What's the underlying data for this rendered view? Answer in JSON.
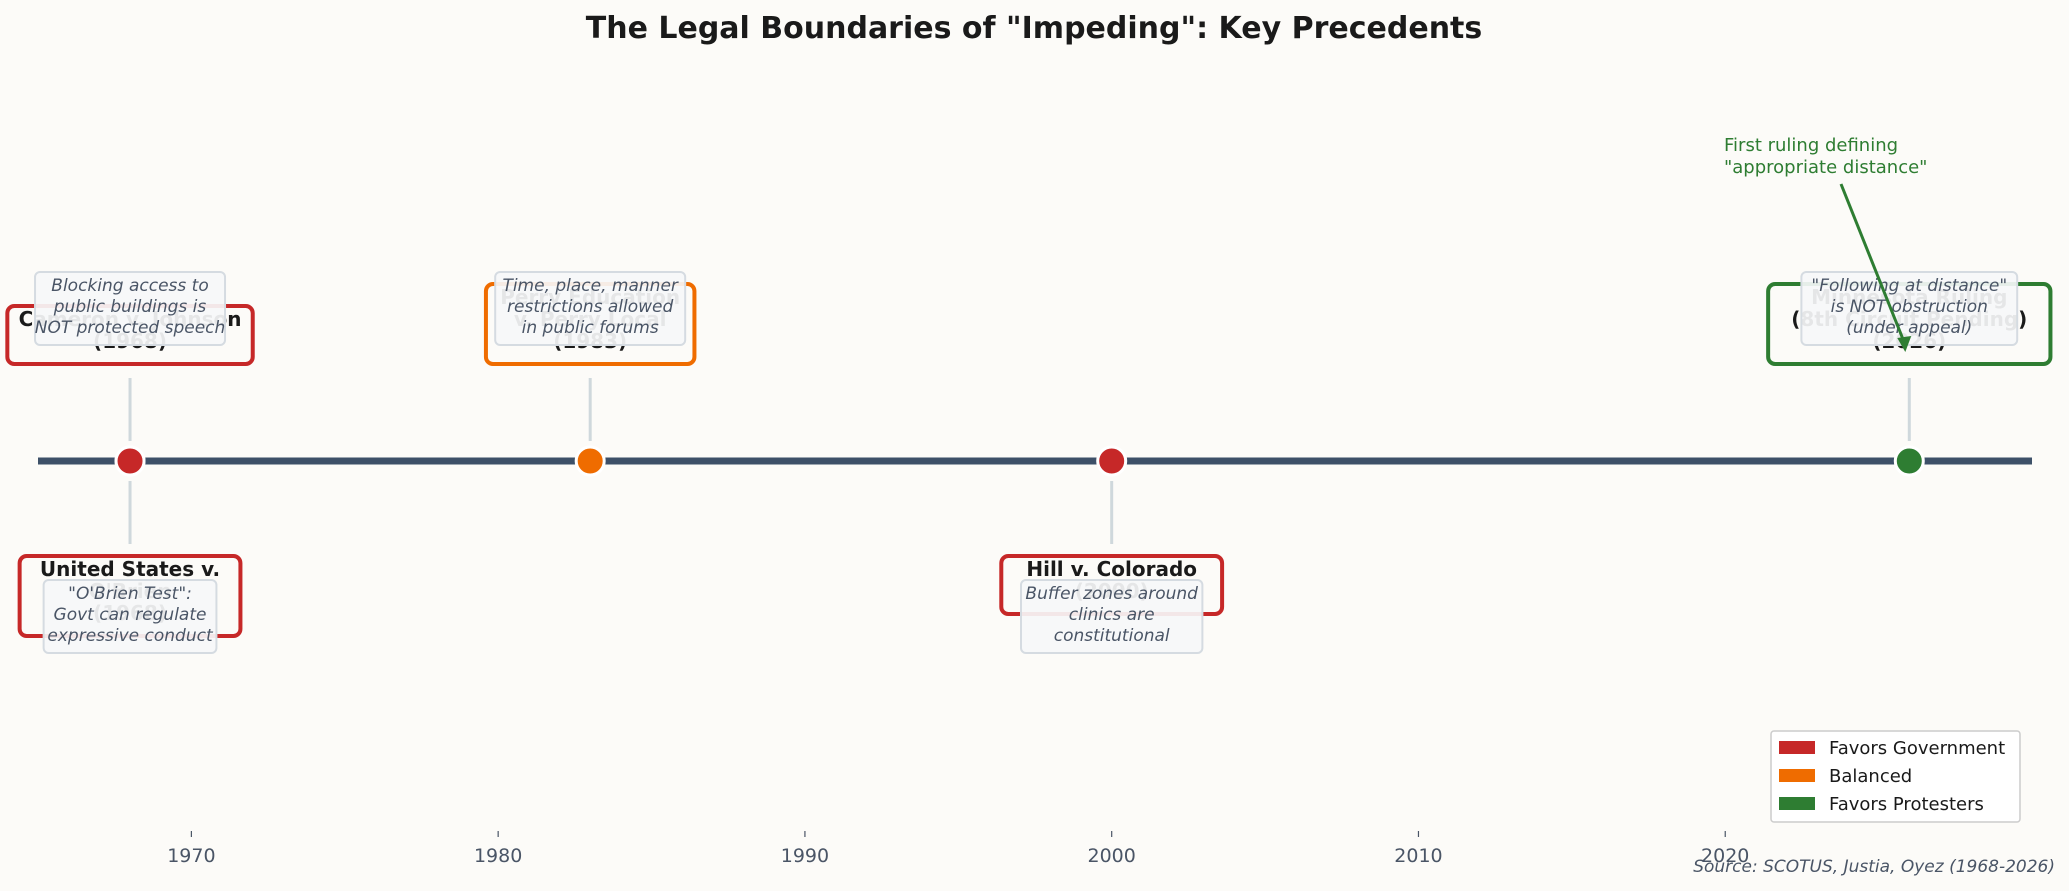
{
  "chart_data": {
    "type": "timeline",
    "title": "The Legal Boundaries of \"Impeding\": Key Precedents",
    "xlim": [
      1965,
      2030
    ],
    "x_ticks": [
      1970,
      1980,
      1990,
      2000,
      2010,
      2020
    ],
    "grid": false,
    "legend": {
      "placement": "bottom-right",
      "entries": [
        {
          "label": "Favors Government",
          "color": "#c62828"
        },
        {
          "label": "Balanced",
          "color": "#ef6c00"
        },
        {
          "label": "Favors Protesters",
          "color": "#2e7d32"
        }
      ]
    },
    "events": [
      {
        "year": 1968,
        "side": "above",
        "category": "Favors Government",
        "color": "#c62828",
        "label_lines": [
          "Cameron v. Johnson",
          "(1968)"
        ],
        "note_lines": [
          "Blocking access to",
          "public buildings is",
          "NOT protected speech"
        ]
      },
      {
        "year": 1968,
        "side": "below",
        "category": "Favors Government",
        "color": "#c62828",
        "label_lines": [
          "United States v.",
          "O'Brien",
          "(1968)"
        ],
        "note_lines": [
          "\"O'Brien Test\":",
          "Govt can regulate",
          "expressive conduct"
        ]
      },
      {
        "year": 1983,
        "side": "above",
        "category": "Balanced",
        "color": "#ef6c00",
        "label_lines": [
          "Perry Education",
          "v. Perry Local",
          "(1983)"
        ],
        "note_lines": [
          "Time, place, manner",
          "restrictions allowed",
          "in public forums"
        ]
      },
      {
        "year": 2000,
        "side": "below",
        "category": "Favors Government",
        "color": "#c62828",
        "label_lines": [
          "Hill v. Colorado",
          "(2000)"
        ],
        "note_lines": [
          "Buffer zones around",
          "clinics are",
          "constitutional"
        ]
      },
      {
        "year": 2026,
        "side": "above",
        "category": "Favors Protesters",
        "color": "#2e7d32",
        "label_lines": [
          "Minnesota Ruling",
          "(8th Circuit Pending)",
          "(2026)"
        ],
        "note_lines": [
          "\"Following at distance\"",
          "is NOT obstruction",
          "(under appeal)"
        ]
      }
    ],
    "annotation": {
      "year": 2026,
      "text_lines": [
        "First ruling defining",
        "\"appropriate distance\""
      ],
      "color": "#2e7d32"
    },
    "source": "Source: SCOTUS, Justia, Oyez (1968-2026)"
  },
  "colors": {
    "timeline": "#3d5068",
    "stem": "#cfd8dc",
    "note_border": "#d5dbe1"
  }
}
